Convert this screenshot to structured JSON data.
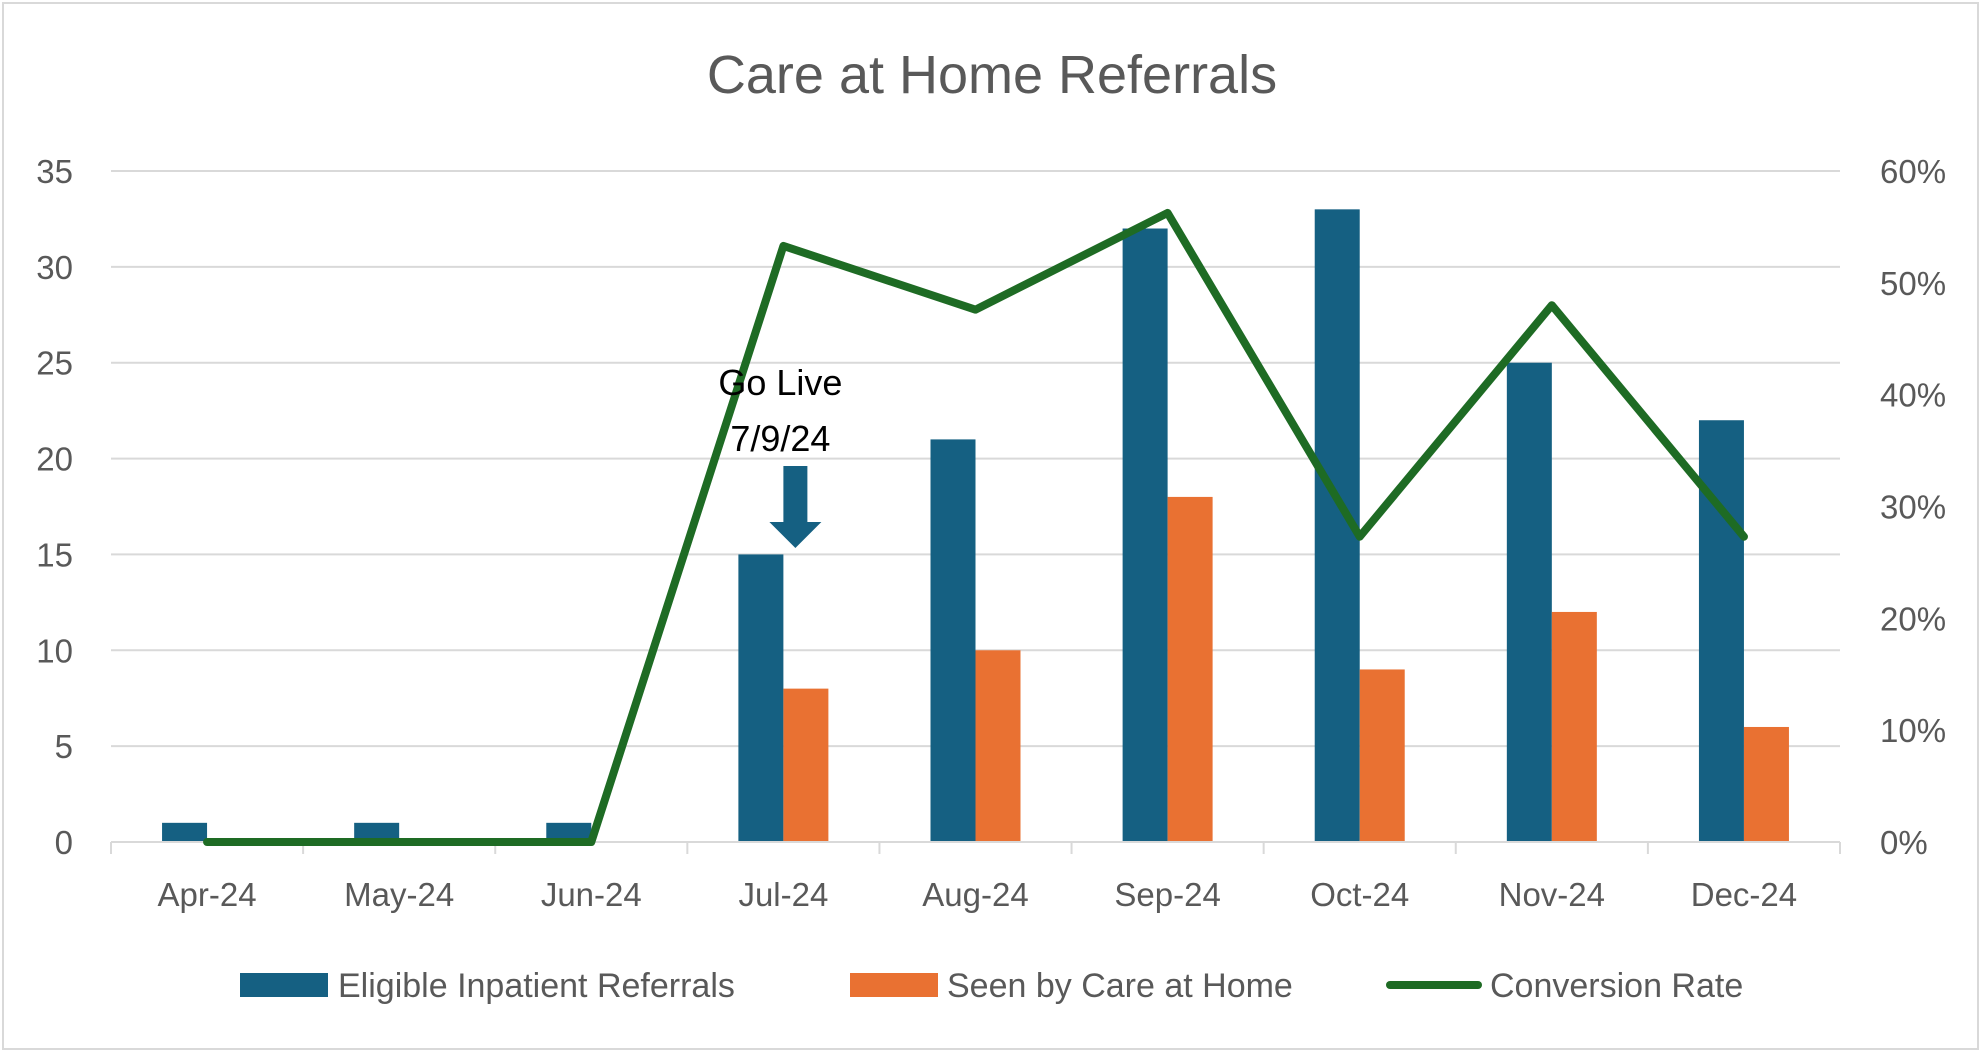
{
  "chart_data": {
    "type": "bar",
    "title": "Care at Home Referrals",
    "categories": [
      "Apr-24",
      "May-24",
      "Jun-24",
      "Jul-24",
      "Aug-24",
      "Sep-24",
      "Oct-24",
      "Nov-24",
      "Dec-24"
    ],
    "series": [
      {
        "name": "Eligible Inpatient Referrals",
        "type": "bar",
        "axis": "left",
        "color": "#156082",
        "values": [
          1,
          1,
          1,
          15,
          21,
          32,
          33,
          25,
          22
        ]
      },
      {
        "name": "Seen by Care at Home",
        "type": "bar",
        "axis": "left",
        "color": "#E97132",
        "values": [
          0,
          0,
          0,
          8,
          10,
          18,
          9,
          12,
          6
        ]
      },
      {
        "name": "Conversion Rate",
        "type": "line",
        "axis": "right",
        "color": "#1E6B24",
        "values": [
          0,
          0,
          0,
          0.533,
          0.476,
          0.5625,
          0.273,
          0.48,
          0.273
        ]
      }
    ],
    "yleft": {
      "min": 0,
      "max": 35,
      "ticks": [
        0,
        5,
        10,
        15,
        20,
        25,
        30,
        35
      ]
    },
    "yright": {
      "min": 0,
      "max": 0.6,
      "ticks": [
        "0%",
        "10%",
        "20%",
        "30%",
        "40%",
        "50%",
        "60%"
      ]
    },
    "grid": true,
    "legend_position": "bottom",
    "annotation": {
      "lines": [
        "Go Live",
        "7/9/24"
      ],
      "category": "Jul-24",
      "arrow_color": "#156082"
    }
  }
}
